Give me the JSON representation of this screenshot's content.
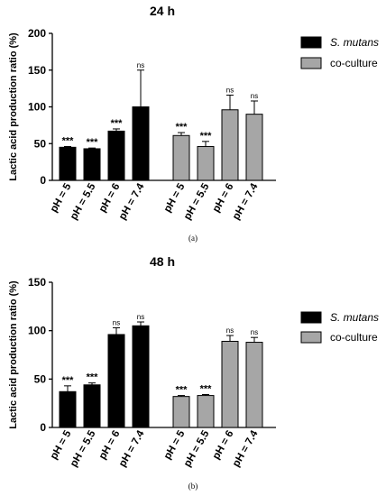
{
  "chart_data": [
    {
      "type": "bar",
      "title": "24 h",
      "ylabel": "Lactic acid production ratio (%)",
      "xlabel": "",
      "ylim": [
        0,
        200
      ],
      "yticks": [
        0,
        50,
        100,
        150,
        200
      ],
      "categories": [
        "pH = 5",
        "pH = 5.5",
        "pH = 6",
        "pH = 7.4"
      ],
      "legend": "top-right",
      "series": [
        {
          "name": "S. mutans",
          "color": "#000000",
          "values": [
            45,
            43,
            67,
            100
          ],
          "errors": [
            1,
            1,
            3,
            50
          ],
          "significance": [
            "***",
            "***",
            "***",
            "ns"
          ]
        },
        {
          "name": "co-culture",
          "color": "#a6a6a6",
          "values": [
            61,
            46,
            96,
            90
          ],
          "errors": [
            4,
            7,
            20,
            18
          ],
          "significance": [
            "***",
            "***",
            "ns",
            "ns"
          ]
        }
      ],
      "caption": "(a)"
    },
    {
      "type": "bar",
      "title": "48 h",
      "ylabel": "Lactic acid production ratio (%)",
      "xlabel": "",
      "ylim": [
        0,
        150
      ],
      "yticks": [
        0,
        50,
        100,
        150
      ],
      "categories": [
        "pH = 5",
        "pH = 5.5",
        "pH = 6",
        "pH = 7.4"
      ],
      "legend": "top-right",
      "series": [
        {
          "name": "S. mutans",
          "color": "#000000",
          "values": [
            37,
            44,
            96,
            105
          ],
          "errors": [
            6,
            2,
            7,
            4
          ],
          "significance": [
            "***",
            "***",
            "ns",
            "ns"
          ]
        },
        {
          "name": "co-culture",
          "color": "#a6a6a6",
          "values": [
            32,
            33,
            89,
            88
          ],
          "errors": [
            1,
            1,
            6,
            5
          ],
          "significance": [
            "***",
            "***",
            "ns",
            "ns"
          ]
        }
      ],
      "caption": "(b)"
    }
  ]
}
